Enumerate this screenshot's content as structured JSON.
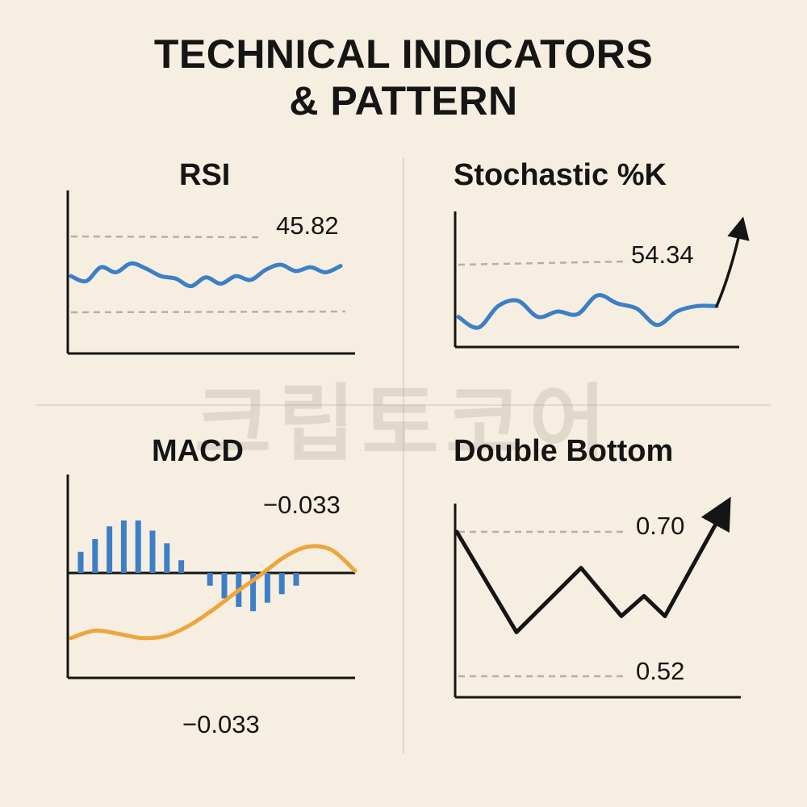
{
  "title_line1": "TECHNICAL INDICATORS",
  "title_line2": "& PATTERN",
  "watermark": "크립토코어",
  "colors": {
    "background": "#f6eee0",
    "blue": "#3c7fc6",
    "orange": "#eda63c",
    "threshold": "#b8b09c",
    "ink": "#151515"
  },
  "chart_data": [
    {
      "type": "line",
      "title": "RSI",
      "value_label": "45.82",
      "series": [
        {
          "values": [
            48,
            44,
            55,
            51,
            58,
            54,
            48,
            46,
            40,
            47,
            42,
            48,
            45,
            53,
            57,
            52,
            55,
            51,
            56
          ]
        }
      ],
      "threshold_lines": [
        "upper",
        "lower"
      ]
    },
    {
      "type": "line",
      "title": "Stochastic %K",
      "value_label": "54.34",
      "series": [
        {
          "values": [
            40,
            32,
            48,
            52,
            40,
            44,
            42,
            56,
            50,
            46,
            34,
            44,
            48,
            48,
            80
          ]
        }
      ],
      "trend": "up-arrow",
      "threshold_lines": [
        "upper"
      ]
    },
    {
      "type": "bar",
      "title": "MACD",
      "value_labels": [
        "−0.033",
        "−0.033"
      ],
      "histogram": [
        0.25,
        0.4,
        0.55,
        0.62,
        0.62,
        0.5,
        0.35,
        0.15,
        0,
        -0.15,
        -0.3,
        -0.4,
        -0.45,
        -0.35,
        -0.25,
        -0.15
      ],
      "signal_line": [
        -0.62,
        -0.55,
        -0.58,
        -0.62,
        -0.6,
        -0.5,
        -0.35,
        -0.18,
        -0.02,
        0.15,
        0.25,
        0.22,
        0.02
      ]
    },
    {
      "type": "line",
      "title": "Double Bottom",
      "value_labels": [
        "0.70",
        "0.52"
      ],
      "ylim": [
        0.52,
        0.7
      ],
      "series": [
        {
          "values": [
            0.7,
            0.575,
            0.655,
            0.595,
            0.62,
            0.595,
            0.7
          ]
        }
      ],
      "trend": "up-arrow",
      "threshold_lines": [
        "0.70",
        "0.52"
      ]
    }
  ]
}
